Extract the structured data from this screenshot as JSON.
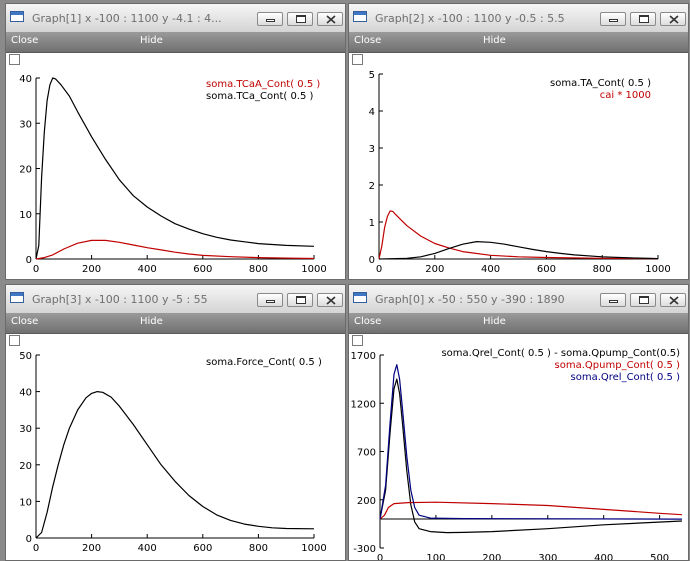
{
  "windows": [
    {
      "key": "g1",
      "title": "Graph[1]  x -100 : 1100  y -4.1 : 4...",
      "menu": {
        "close": "Close",
        "hide": "Hide"
      },
      "plot": {
        "xlim": [
          0,
          1000
        ],
        "ylim": [
          0,
          40
        ],
        "xticks": [
          0,
          200,
          400,
          600,
          800,
          1000
        ],
        "yticks": [
          0,
          10,
          20,
          30,
          40
        ],
        "legend": [
          {
            "text": "soma.TCaA_Cont( 0.5 )",
            "color": "#c00000"
          },
          {
            "text": "soma.TCa_Cont( 0.5 )",
            "color": "#000000"
          }
        ],
        "series": [
          {
            "color": "#000000",
            "points": [
              [
                0,
                0
              ],
              [
                10,
                3
              ],
              [
                20,
                18
              ],
              [
                30,
                28
              ],
              [
                40,
                35
              ],
              [
                50,
                38.5
              ],
              [
                60,
                40
              ],
              [
                70,
                39.8
              ],
              [
                90,
                38.5
              ],
              [
                120,
                36
              ],
              [
                150,
                32.5
              ],
              [
                200,
                27
              ],
              [
                250,
                22
              ],
              [
                300,
                17.5
              ],
              [
                350,
                14
              ],
              [
                400,
                11.5
              ],
              [
                450,
                9.5
              ],
              [
                500,
                7.8
              ],
              [
                550,
                6.6
              ],
              [
                600,
                5.6
              ],
              [
                650,
                4.8
              ],
              [
                700,
                4.2
              ],
              [
                750,
                3.8
              ],
              [
                800,
                3.4
              ],
              [
                850,
                3.2
              ],
              [
                900,
                3.0
              ],
              [
                1000,
                2.8
              ]
            ]
          },
          {
            "color": "#c00000",
            "points": [
              [
                0,
                0
              ],
              [
                30,
                0.3
              ],
              [
                60,
                0.9
              ],
              [
                100,
                2.2
              ],
              [
                150,
                3.5
              ],
              [
                200,
                4.1
              ],
              [
                250,
                4.1
              ],
              [
                300,
                3.7
              ],
              [
                350,
                3.1
              ],
              [
                400,
                2.5
              ],
              [
                450,
                2.0
              ],
              [
                500,
                1.5
              ],
              [
                550,
                1.1
              ],
              [
                600,
                0.8
              ],
              [
                700,
                0.5
              ],
              [
                800,
                0.3
              ],
              [
                900,
                0.2
              ],
              [
                1000,
                0.1
              ]
            ]
          }
        ]
      }
    },
    {
      "key": "g2",
      "title": "Graph[2]  x -100 : 1100  y -0.5 : 5.5",
      "menu": {
        "close": "Close",
        "hide": "Hide"
      },
      "plot": {
        "xlim": [
          0,
          1000
        ],
        "ylim": [
          0,
          5
        ],
        "xticks": [
          0,
          200,
          400,
          600,
          800,
          1000
        ],
        "yticks": [
          0,
          1,
          2,
          3,
          4,
          5
        ],
        "legend": [
          {
            "text": "soma.TA_Cont( 0.5 )",
            "color": "#000000"
          },
          {
            "text": "cai * 1000",
            "color": "#c00000"
          }
        ],
        "series": [
          {
            "color": "#c00000",
            "points": [
              [
                0,
                0
              ],
              [
                10,
                0.35
              ],
              [
                20,
                0.85
              ],
              [
                30,
                1.15
              ],
              [
                40,
                1.3
              ],
              [
                50,
                1.28
              ],
              [
                60,
                1.2
              ],
              [
                80,
                1.05
              ],
              [
                100,
                0.9
              ],
              [
                150,
                0.62
              ],
              [
                200,
                0.42
              ],
              [
                250,
                0.3
              ],
              [
                300,
                0.2
              ],
              [
                400,
                0.1
              ],
              [
                500,
                0.06
              ],
              [
                600,
                0.04
              ],
              [
                800,
                0.02
              ],
              [
                1000,
                0.01
              ]
            ]
          },
          {
            "color": "#000000",
            "points": [
              [
                0,
                0
              ],
              [
                100,
                0.02
              ],
              [
                150,
                0.06
              ],
              [
                200,
                0.15
              ],
              [
                250,
                0.28
              ],
              [
                300,
                0.4
              ],
              [
                350,
                0.47
              ],
              [
                400,
                0.45
              ],
              [
                450,
                0.4
              ],
              [
                500,
                0.33
              ],
              [
                550,
                0.26
              ],
              [
                600,
                0.2
              ],
              [
                650,
                0.15
              ],
              [
                700,
                0.11
              ],
              [
                800,
                0.06
              ],
              [
                900,
                0.03
              ],
              [
                1000,
                0.01
              ]
            ]
          }
        ]
      }
    },
    {
      "key": "g3",
      "title": "Graph[3]  x -100 : 1100  y -5 : 55",
      "menu": {
        "close": "Close",
        "hide": "Hide"
      },
      "plot": {
        "xlim": [
          0,
          1000
        ],
        "ylim": [
          0,
          50
        ],
        "xticks": [
          0,
          200,
          400,
          600,
          800,
          1000
        ],
        "yticks": [
          0,
          10,
          20,
          30,
          40,
          50
        ],
        "legend": [
          {
            "text": "soma.Force_Cont( 0.5 )",
            "color": "#000000"
          }
        ],
        "series": [
          {
            "color": "#000000",
            "points": [
              [
                0,
                0
              ],
              [
                20,
                1.5
              ],
              [
                40,
                7
              ],
              [
                60,
                14
              ],
              [
                80,
                20
              ],
              [
                100,
                25.5
              ],
              [
                120,
                30
              ],
              [
                150,
                35
              ],
              [
                180,
                38.3
              ],
              [
                200,
                39.5
              ],
              [
                220,
                40
              ],
              [
                240,
                39.8
              ],
              [
                270,
                38.5
              ],
              [
                300,
                36
              ],
              [
                350,
                31
              ],
              [
                400,
                25.5
              ],
              [
                450,
                20
              ],
              [
                500,
                15.5
              ],
              [
                550,
                11.6
              ],
              [
                600,
                8.6
              ],
              [
                650,
                6.3
              ],
              [
                700,
                4.8
              ],
              [
                750,
                3.8
              ],
              [
                800,
                3.2
              ],
              [
                850,
                2.8
              ],
              [
                900,
                2.6
              ],
              [
                1000,
                2.5
              ]
            ]
          }
        ]
      }
    },
    {
      "key": "g0",
      "title": "Graph[0]  x -50 : 550  y -390 : 1890",
      "menu": {
        "close": "Close",
        "hide": "Hide"
      },
      "plot": {
        "xlim": [
          0,
          540
        ],
        "ylim": [
          -300,
          1700
        ],
        "xticks": [
          0,
          100,
          200,
          300,
          400,
          500
        ],
        "yticks": [
          -300,
          200,
          700,
          1200,
          1700
        ],
        "legend": [
          {
            "text": "soma.Qrel_Cont( 0.5 ) - soma.Qpump_Cont(0.5)",
            "color": "#000000"
          },
          {
            "text": "soma.Qpump_Cont( 0.5 )",
            "color": "#c00000"
          },
          {
            "text": "soma.Qrel_Cont( 0.5 )",
            "color": "#000080"
          }
        ],
        "series": [
          {
            "color": "#000000",
            "points": [
              [
                0,
                0
              ],
              [
                10,
                300
              ],
              [
                18,
                900
              ],
              [
                25,
                1350
              ],
              [
                30,
                1450
              ],
              [
                35,
                1300
              ],
              [
                40,
                1000
              ],
              [
                48,
                500
              ],
              [
                55,
                150
              ],
              [
                62,
                -30
              ],
              [
                70,
                -100
              ],
              [
                90,
                -130
              ],
              [
                120,
                -140
              ],
              [
                150,
                -138
              ],
              [
                200,
                -130
              ],
              [
                300,
                -100
              ],
              [
                400,
                -60
              ],
              [
                540,
                -20
              ]
            ]
          },
          {
            "color": "#c00000",
            "points": [
              [
                0,
                0
              ],
              [
                8,
                40
              ],
              [
                15,
                120
              ],
              [
                25,
                160
              ],
              [
                50,
                170
              ],
              [
                100,
                175
              ],
              [
                200,
                160
              ],
              [
                300,
                140
              ],
              [
                400,
                100
              ],
              [
                500,
                60
              ],
              [
                540,
                45
              ]
            ]
          },
          {
            "color": "#000080",
            "points": [
              [
                0,
                0
              ],
              [
                10,
                350
              ],
              [
                18,
                1000
              ],
              [
                25,
                1500
              ],
              [
                30,
                1600
              ],
              [
                35,
                1450
              ],
              [
                40,
                1150
              ],
              [
                48,
                650
              ],
              [
                55,
                300
              ],
              [
                62,
                120
              ],
              [
                70,
                40
              ],
              [
                90,
                10
              ],
              [
                150,
                5
              ],
              [
                540,
                0
              ]
            ]
          }
        ]
      }
    }
  ]
}
